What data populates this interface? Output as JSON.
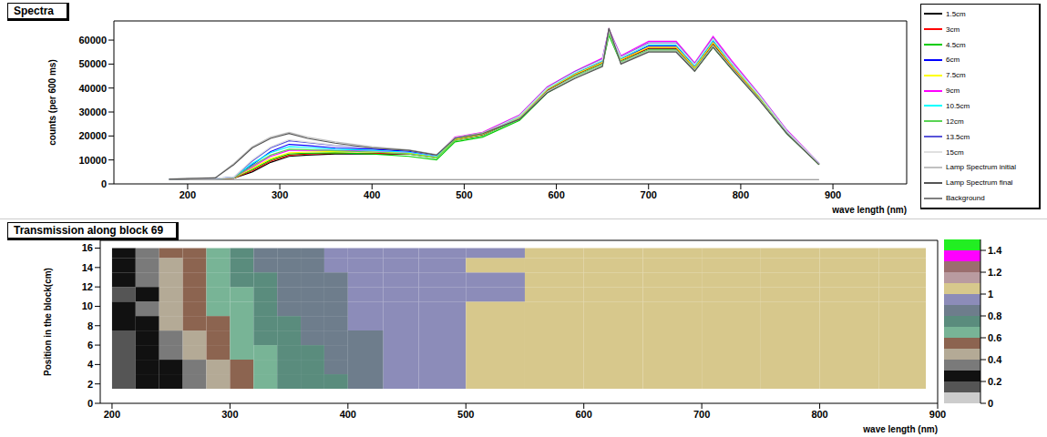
{
  "chart_data": [
    {
      "type": "line",
      "title": "Spectra",
      "x_label": "wave length (nm)",
      "y_label": "counts (per 600 ms)",
      "xlim": [
        120,
        980
      ],
      "xticks": [
        200,
        300,
        400,
        500,
        600,
        700,
        800,
        900
      ],
      "ylim": [
        0,
        68000
      ],
      "yticks": [
        0,
        10000,
        20000,
        30000,
        40000,
        50000,
        60000
      ],
      "legend": "right",
      "x": [
        180,
        230,
        250,
        270,
        290,
        310,
        330,
        360,
        400,
        440,
        470,
        490,
        520,
        560,
        590,
        620,
        650,
        657,
        670,
        700,
        730,
        750,
        770,
        790,
        820,
        850,
        885
      ],
      "series": [
        {
          "name": "1.5cm",
          "color": "#000000",
          "values": [
            2000,
            2200,
            2400,
            5000,
            9000,
            11500,
            12000,
            12500,
            12500,
            12500,
            11000,
            18500,
            20500,
            27500,
            39000,
            45500,
            50500,
            63000,
            51500,
            56500,
            56500,
            48000,
            58500,
            49000,
            36000,
            21500,
            8200
          ]
        },
        {
          "name": "3cm",
          "color": "#ff0000",
          "values": [
            2000,
            2200,
            2400,
            5500,
            9500,
            12000,
            12500,
            12800,
            12800,
            12600,
            11000,
            18500,
            20600,
            27600,
            39200,
            45600,
            50600,
            63000,
            51600,
            56700,
            56700,
            48200,
            58700,
            49200,
            36100,
            21600,
            8200
          ]
        },
        {
          "name": "4.5cm",
          "color": "#00cc00",
          "values": [
            2000,
            2200,
            2500,
            6000,
            10000,
            12500,
            12800,
            13000,
            12500,
            11500,
            10000,
            17500,
            19500,
            26500,
            38000,
            44500,
            49500,
            62000,
            50500,
            55500,
            55500,
            47200,
            57000,
            48000,
            35200,
            21000,
            8000
          ]
        },
        {
          "name": "6cm",
          "color": "#0000ff",
          "values": [
            2000,
            2200,
            2600,
            8000,
            13500,
            16500,
            16000,
            15000,
            14500,
            13500,
            11500,
            18800,
            20800,
            28000,
            39500,
            46000,
            51000,
            63500,
            52000,
            57500,
            57500,
            48800,
            59500,
            49800,
            36500,
            21800,
            8300
          ]
        },
        {
          "name": "7.5cm",
          "color": "#ffff00",
          "values": [
            2000,
            2200,
            2500,
            6500,
            10500,
            13000,
            13300,
            13500,
            13300,
            12800,
            11200,
            18600,
            20700,
            27800,
            39400,
            45800,
            50800,
            63200,
            51800,
            57000,
            57000,
            48500,
            59000,
            49500,
            36300,
            21700,
            8250
          ]
        },
        {
          "name": "9cm",
          "color": "#ff00ff",
          "values": [
            2000,
            2200,
            2600,
            7000,
            11500,
            14000,
            14000,
            14000,
            13800,
            13200,
            11500,
            19500,
            21500,
            28800,
            40500,
            47000,
            52500,
            64500,
            53500,
            59500,
            59500,
            50500,
            61500,
            51500,
            37500,
            22500,
            8600
          ]
        },
        {
          "name": "10.5cm",
          "color": "#00ffff",
          "values": [
            2000,
            2200,
            2700,
            8500,
            13000,
            15500,
            15200,
            14500,
            14000,
            13200,
            11500,
            19000,
            21000,
            28200,
            39800,
            46300,
            51500,
            63800,
            52500,
            58000,
            58000,
            49500,
            60000,
            50300,
            36800,
            22000,
            8400
          ]
        },
        {
          "name": "12cm",
          "color": "#59d454",
          "values": [
            2000,
            2200,
            2600,
            7500,
            12000,
            14500,
            14300,
            13800,
            13300,
            12500,
            10800,
            18000,
            20000,
            27000,
            38500,
            45000,
            50000,
            62500,
            51000,
            56000,
            56000,
            47800,
            57800,
            48500,
            35500,
            21200,
            8100
          ]
        },
        {
          "name": "13.5cm",
          "color": "#5954d9",
          "values": [
            2000,
            2200,
            2800,
            9500,
            15000,
            18000,
            17200,
            16000,
            15000,
            14000,
            12000,
            19200,
            21200,
            28500,
            40200,
            46800,
            52000,
            64200,
            53000,
            58800,
            58800,
            50000,
            60800,
            50800,
            37200,
            22200,
            8500
          ]
        },
        {
          "name": "15cm",
          "color": "#e0e0e0",
          "values": [
            2000,
            2200,
            2800,
            10000,
            15500,
            18500,
            17500,
            16200,
            15200,
            14100,
            12000,
            19100,
            21100,
            28400,
            40000,
            46500,
            51800,
            64000,
            52800,
            58500,
            58500,
            49800,
            60500,
            50600,
            37000,
            22100,
            8450
          ]
        },
        {
          "name": "Lamp Spectrum initial",
          "color": "#c0c0c0",
          "values": [
            2100,
            2600,
            8500,
            15500,
            19500,
            21500,
            19500,
            17500,
            15500,
            14200,
            12200,
            19300,
            21300,
            27300,
            38500,
            44500,
            49500,
            64000,
            50500,
            55500,
            55500,
            47500,
            57500,
            48500,
            35300,
            21200,
            8100
          ]
        },
        {
          "name": "Lamp Spectrum final",
          "color": "#555555",
          "values": [
            2000,
            2500,
            8000,
            15000,
            19000,
            21000,
            19000,
            17000,
            15000,
            14000,
            12000,
            19000,
            21000,
            27000,
            38000,
            44000,
            49000,
            65000,
            50000,
            55000,
            55000,
            47000,
            57000,
            48000,
            35000,
            21000,
            8000
          ]
        },
        {
          "name": "Background",
          "color": "#808080",
          "values": [
            1800,
            1800,
            1800,
            1800,
            1800,
            1800,
            1800,
            1800,
            1800,
            1800,
            1800,
            1800,
            1800,
            1800,
            1800,
            1800,
            1800,
            1800,
            1800,
            1800,
            1800,
            1800,
            1800,
            1800,
            1800,
            1800,
            1800
          ]
        }
      ]
    },
    {
      "type": "heatmap",
      "title": "Transmission along block 69",
      "x_label": "wave length (nm)",
      "y_label": "Position in the block(cm)",
      "xlim": [
        190,
        900
      ],
      "xticks": [
        200,
        300,
        400,
        500,
        600,
        700,
        800,
        900
      ],
      "ylim": [
        0,
        16.8
      ],
      "yticks": [
        0,
        2,
        4,
        6,
        8,
        10,
        12,
        14,
        16
      ],
      "x_edges": [
        200,
        220,
        240,
        260,
        280,
        300,
        320,
        340,
        360,
        380,
        400,
        430,
        460,
        500,
        550,
        600,
        650,
        700,
        750,
        800,
        850,
        890
      ],
      "y_edges": [
        1.5,
        3,
        4.5,
        6,
        7.5,
        9,
        10.5,
        12,
        13.5,
        15,
        16
      ],
      "cells": [
        [
          0.15,
          0.25,
          0.3,
          0.35,
          0.42,
          0.55,
          0.62,
          0.72,
          0.75,
          0.78,
          0.83,
          0.95,
          0.97,
          1.02,
          1.03,
          1.04,
          1.04,
          1.05,
          1.04,
          1.03,
          1.03
        ],
        [
          0.1,
          0.2,
          0.3,
          0.38,
          0.45,
          0.58,
          0.65,
          0.73,
          0.76,
          0.8,
          0.85,
          0.95,
          0.97,
          1.02,
          1.03,
          1.04,
          1.04,
          1.05,
          1.04,
          1.03,
          1.03
        ],
        [
          0.12,
          0.22,
          0.35,
          0.42,
          0.5,
          0.62,
          0.7,
          0.75,
          0.78,
          0.82,
          0.86,
          0.95,
          0.98,
          1.02,
          1.02,
          1.03,
          1.03,
          1.04,
          1.03,
          1.03,
          1.02
        ],
        [
          0.15,
          0.3,
          0.38,
          0.48,
          0.58,
          0.66,
          0.72,
          0.77,
          0.8,
          0.84,
          0.88,
          0.96,
          0.98,
          1.03,
          1.04,
          1.05,
          1.05,
          1.06,
          1.05,
          1.04,
          1.04
        ],
        [
          0.2,
          0.3,
          0.4,
          0.5,
          0.6,
          0.68,
          0.72,
          0.76,
          0.82,
          0.86,
          0.92,
          0.96,
          0.98,
          1.02,
          1.03,
          1.04,
          1.04,
          1.05,
          1.04,
          1.03,
          1.03
        ],
        [
          0.2,
          0.32,
          0.42,
          0.55,
          0.62,
          0.7,
          0.75,
          0.8,
          0.84,
          0.88,
          0.93,
          0.96,
          0.98,
          1.03,
          1.05,
          1.06,
          1.07,
          1.08,
          1.07,
          1.06,
          1.05
        ],
        [
          0.15,
          0.3,
          0.4,
          0.55,
          0.62,
          0.7,
          0.76,
          0.8,
          0.85,
          0.88,
          0.92,
          0.95,
          0.96,
          0.98,
          1.02,
          1.03,
          1.04,
          1.05,
          1.04,
          1.03,
          1.03
        ],
        [
          0.2,
          0.35,
          0.45,
          0.58,
          0.66,
          0.72,
          0.78,
          0.82,
          0.86,
          0.89,
          0.9,
          0.93,
          0.95,
          0.98,
          1.02,
          1.02,
          1.03,
          1.03,
          1.03,
          1.02,
          1.02
        ],
        [
          0.2,
          0.35,
          0.48,
          0.6,
          0.66,
          0.74,
          0.8,
          0.84,
          0.87,
          0.9,
          0.93,
          0.95,
          0.96,
          1.0,
          1.03,
          1.04,
          1.05,
          1.06,
          1.05,
          1.04,
          1.04
        ],
        [
          0.25,
          0.38,
          0.5,
          0.6,
          0.68,
          0.76,
          0.82,
          0.86,
          0.88,
          0.9,
          0.93,
          0.95,
          0.96,
          0.99,
          1.03,
          1.04,
          1.05,
          1.05,
          1.05,
          1.04,
          1.04
        ]
      ],
      "colorbar": {
        "range": [
          0,
          1.5
        ],
        "ticks": [
          0,
          0.2,
          0.4,
          0.6,
          0.8,
          1,
          1.2,
          1.4
        ],
        "colors": [
          "#cccccc",
          "#555555",
          "#111111",
          "#7a7a7a",
          "#b4aa96",
          "#8c6450",
          "#78b496",
          "#5a8c7d",
          "#6e7d8c",
          "#8c8cb9",
          "#d7c88c",
          "#b99ba0",
          "#9b6e6e",
          "#ff00ff",
          "#22ee22"
        ]
      }
    }
  ]
}
